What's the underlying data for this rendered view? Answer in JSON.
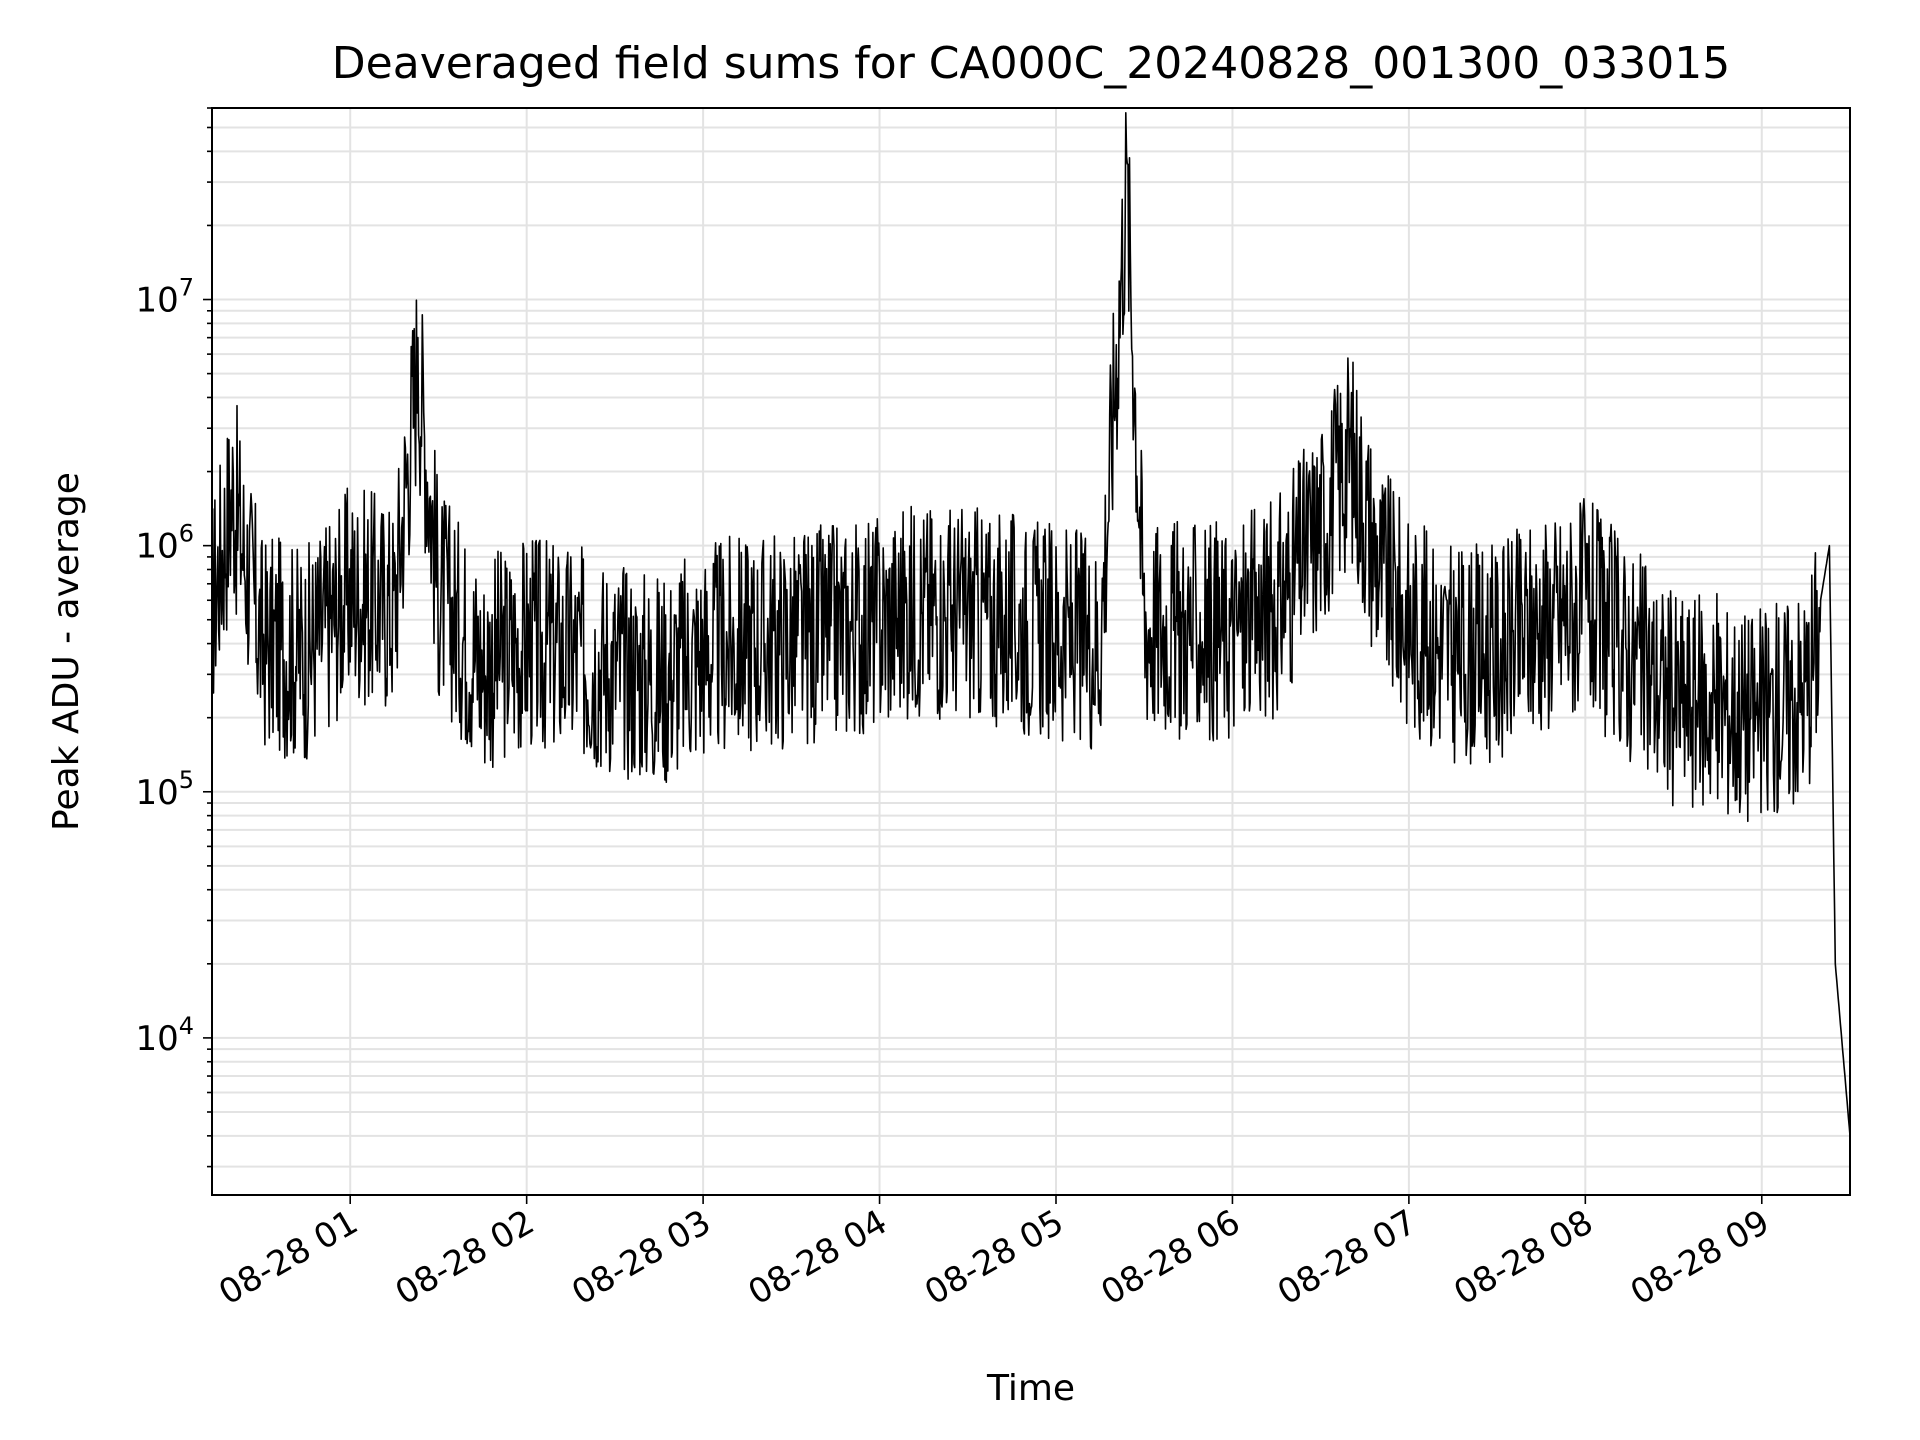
{
  "chart_data": {
    "type": "line",
    "title": "Deaveraged field sums for CA000C_20240828_001300_033015",
    "xlabel": "Time",
    "ylabel": "Peak ADU - average",
    "yscale": "log",
    "ylim": [
      2300,
      60000000
    ],
    "xlim": [
      "2024-08-28 00:13",
      "2024-08-28 09:30"
    ],
    "grid": true,
    "line_color": "#000000",
    "grid_color": "#e3e3e3",
    "x_ticks": [
      "08-28 01",
      "08-28 02",
      "08-28 03",
      "08-28 04",
      "08-28 05",
      "08-28 06",
      "08-28 07",
      "08-28 08",
      "08-28 09"
    ],
    "y_ticks": [
      {
        "value": 10000,
        "base": "10",
        "exp": "4"
      },
      {
        "value": 100000,
        "base": "10",
        "exp": "5"
      },
      {
        "value": 1000000,
        "base": "10",
        "exp": "6"
      },
      {
        "value": 10000000,
        "base": "10",
        "exp": "7"
      }
    ],
    "series": [
      {
        "x": [
          "2024-08-28 00:13",
          "2024-08-28 00:20",
          "2024-08-28 00:30",
          "2024-08-28 00:45",
          "2024-08-28 01:00",
          "2024-08-28 01:15",
          "2024-08-28 01:23",
          "2024-08-28 01:30",
          "2024-08-28 01:45",
          "2024-08-28 02:00",
          "2024-08-28 02:15",
          "2024-08-28 02:30",
          "2024-08-28 02:45",
          "2024-08-28 03:00",
          "2024-08-28 03:15",
          "2024-08-28 03:30",
          "2024-08-28 03:45",
          "2024-08-28 04:00",
          "2024-08-28 04:15",
          "2024-08-28 04:30",
          "2024-08-28 04:45",
          "2024-08-28 05:00",
          "2024-08-28 05:15",
          "2024-08-28 05:24",
          "2024-08-28 05:30",
          "2024-08-28 05:45",
          "2024-08-28 06:00",
          "2024-08-28 06:15",
          "2024-08-28 06:30",
          "2024-08-28 06:40",
          "2024-08-28 06:50",
          "2024-08-28 07:00",
          "2024-08-28 07:15",
          "2024-08-28 07:30",
          "2024-08-28 07:45",
          "2024-08-28 08:00",
          "2024-08-28 08:15",
          "2024-08-28 08:30",
          "2024-08-28 08:45",
          "2024-08-28 09:00",
          "2024-08-28 09:15",
          "2024-08-28 09:20",
          "2024-08-28 09:23",
          "2024-08-28 09:25",
          "2024-08-28 09:30"
        ],
        "y": [
          700000,
          2000000,
          500000,
          450000,
          800000,
          700000,
          7000000,
          800000,
          400000,
          500000,
          450000,
          400000,
          350000,
          450000,
          500000,
          500000,
          550000,
          600000,
          700000,
          650000,
          600000,
          550000,
          500000,
          38000000,
          600000,
          550000,
          550000,
          700000,
          1500000,
          3000000,
          1000000,
          600000,
          450000,
          450000,
          600000,
          700000,
          450000,
          300000,
          280000,
          250000,
          320000,
          600000,
          1000000,
          20000,
          4000
        ]
      }
    ]
  }
}
